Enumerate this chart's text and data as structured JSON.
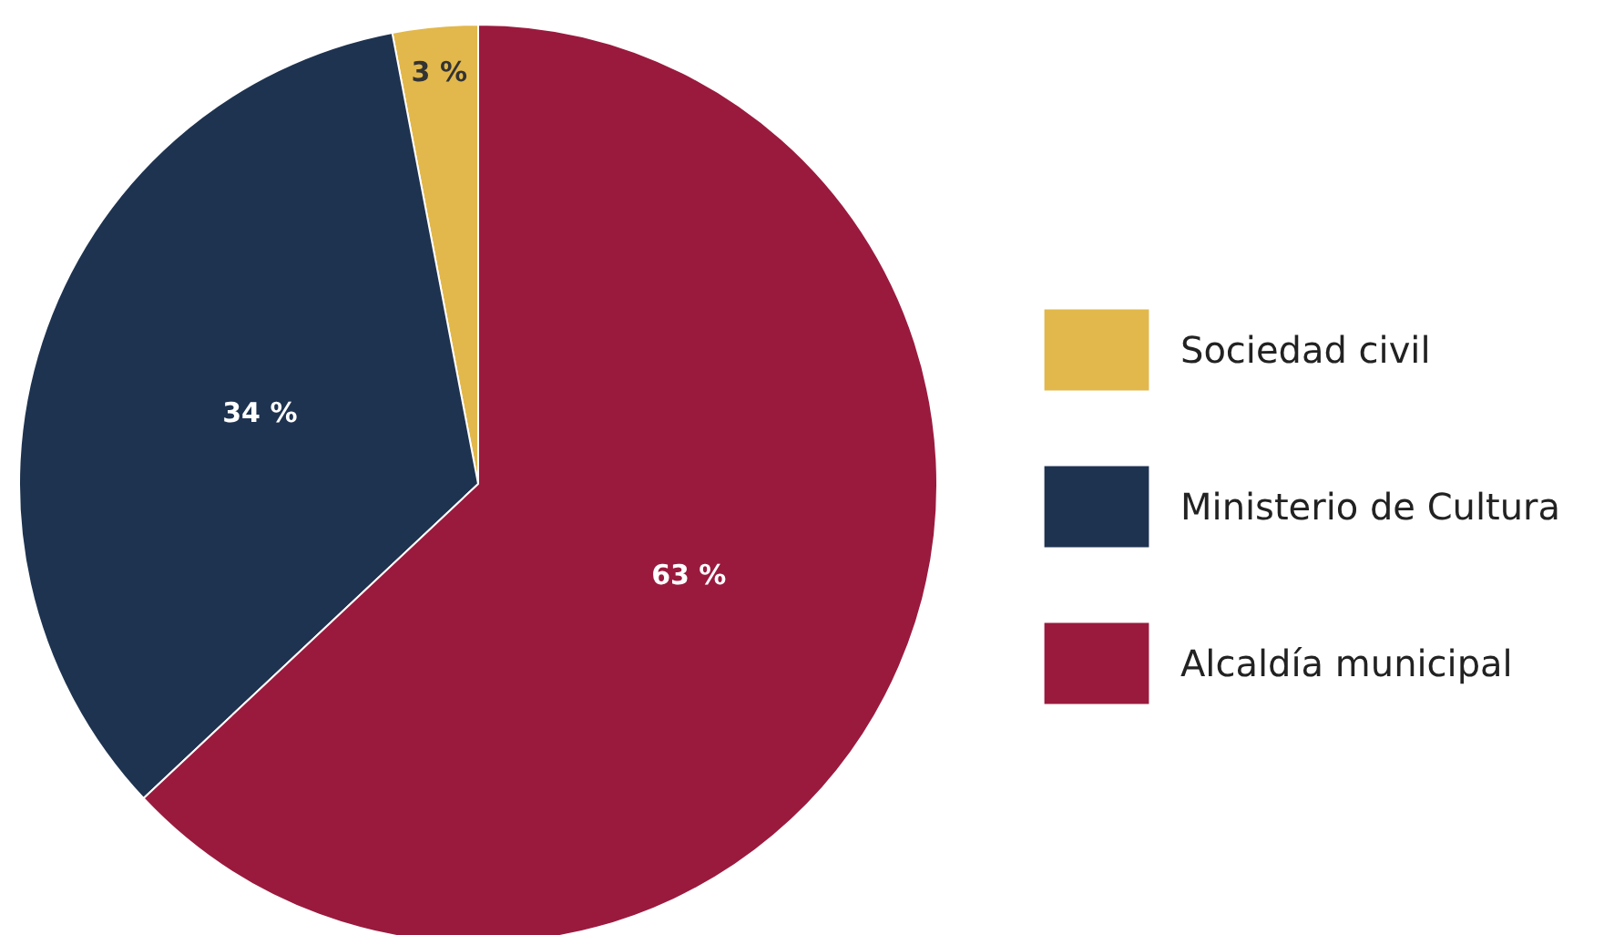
{
  "chart_data": {
    "type": "pie",
    "categories": [
      "Sociedad civil",
      "Ministerio de Cultura",
      "Alcaldía municipal"
    ],
    "values": [
      3,
      34,
      63
    ],
    "colors": [
      "#e2b84c",
      "#1e3350",
      "#9a1a3e"
    ],
    "value_labels": [
      "3 %",
      "34 %",
      "63 %"
    ],
    "legend": "right"
  }
}
